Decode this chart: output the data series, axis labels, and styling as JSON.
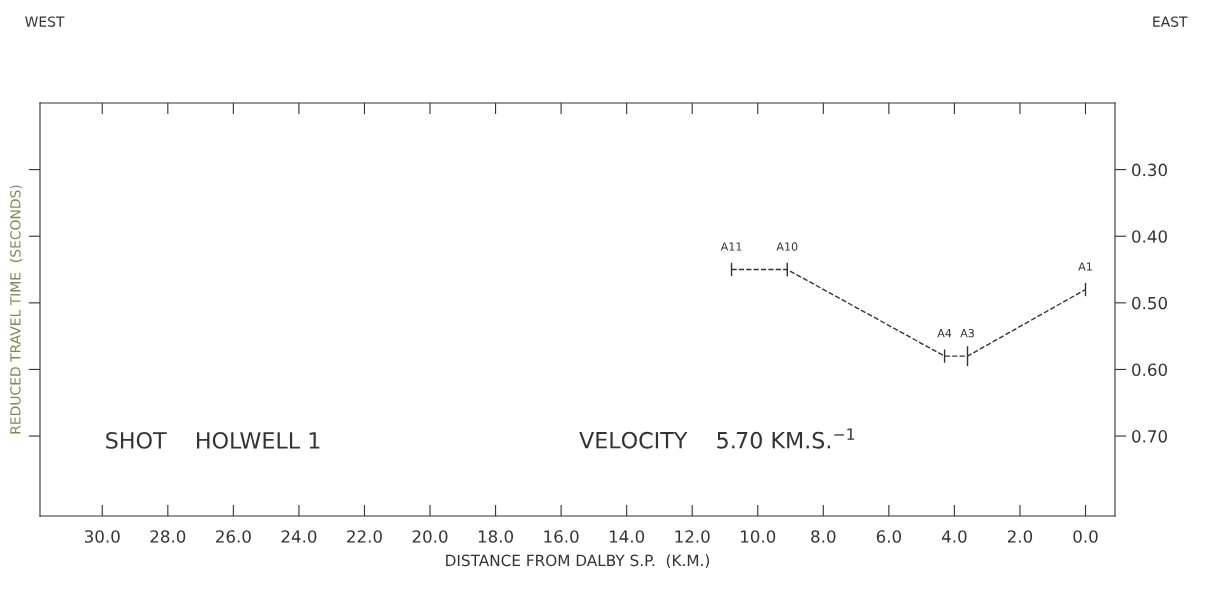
{
  "chart_data": {
    "type": "line",
    "xlabel": "DISTANCE FROM DALBY S.P.  (K.M.)",
    "ylabel": "REDUCED TRAVEL TIME  (SECONDS)",
    "x": [
      10.8,
      9.1,
      4.3,
      3.6,
      0.0
    ],
    "series": [
      {
        "color": "#333333",
        "values": [
          0.45,
          0.45,
          0.58,
          0.58,
          0.48
        ],
        "errors": [
          0.01,
          0.01,
          0.01,
          0.015,
          0.01
        ]
      }
    ],
    "line_style": "dashed",
    "marker": "none",
    "xlim": [
      31.9,
      -0.9
    ],
    "xticks": [
      {
        "value": 30,
        "label": "30.0"
      },
      {
        "value": 28,
        "label": "28.0"
      },
      {
        "value": 26,
        "label": "26.0"
      },
      {
        "value": 24,
        "label": "24.0"
      },
      {
        "value": 22,
        "label": "22.0"
      },
      {
        "value": 20,
        "label": "20.0"
      },
      {
        "value": 18,
        "label": "18.0"
      },
      {
        "value": 16,
        "label": "16.0"
      },
      {
        "value": 14,
        "label": "14.0"
      },
      {
        "value": 12,
        "label": "12.0"
      },
      {
        "value": 10,
        "label": "10.0"
      },
      {
        "value": 8,
        "label": "8.0"
      },
      {
        "value": 6,
        "label": "6.0"
      },
      {
        "value": 4,
        "label": "4.0"
      },
      {
        "value": 2,
        "label": "2.0"
      },
      {
        "value": 0,
        "label": "0.0"
      }
    ],
    "ylim": [
      0.82,
      0.2
    ],
    "yticks": [
      {
        "value": 0.3,
        "label": "0.30"
      },
      {
        "value": 0.4,
        "label": "0.40"
      },
      {
        "value": 0.5,
        "label": "0.50"
      },
      {
        "value": 0.6,
        "label": "0.60"
      },
      {
        "value": 0.7,
        "label": "0.70"
      }
    ],
    "grid": false,
    "legend": false,
    "annotations": [
      {
        "text": "A11",
        "x": 10.8,
        "y": 0.45
      },
      {
        "text": "A10",
        "x": 9.1,
        "y": 0.45
      },
      {
        "text": "A4",
        "x": 4.3,
        "y": 0.58
      },
      {
        "text": "A3",
        "x": 3.6,
        "y": 0.58
      },
      {
        "text": "A1",
        "x": 0.0,
        "y": 0.48
      },
      "WEST",
      "EAST",
      "SHOT    HOLWELL 1",
      "VELOCITY    5.70 KM.S.$^{−1}$"
    ]
  }
}
